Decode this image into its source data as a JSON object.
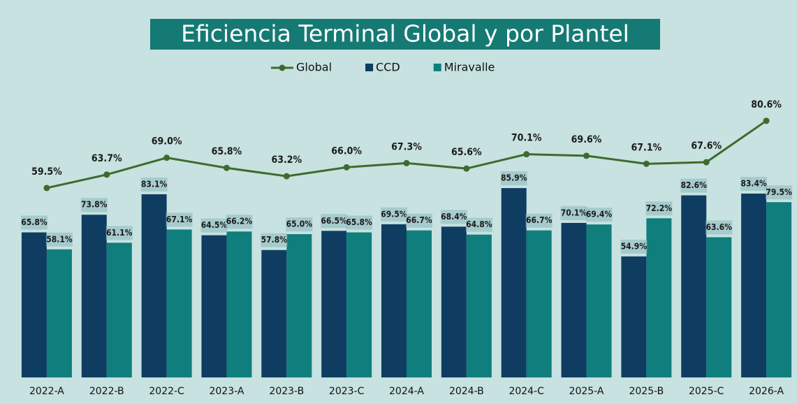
{
  "chart_data": {
    "type": "bar-line",
    "title": "Eficiencia Terminal Global y por Plantel",
    "categories": [
      "2022-A",
      "2022-B",
      "2022-C",
      "2023-A",
      "2023-B",
      "2023-C",
      "2024-A",
      "2024-B",
      "2024-C",
      "2025-A",
      "2025-B",
      "2025-C",
      "2026-A"
    ],
    "ylim": [
      0,
      130
    ],
    "y2lim": [
      0,
      90
    ],
    "series": [
      {
        "name": "Global",
        "type": "line",
        "axis": "y2",
        "color": "#3d6b2e",
        "values": [
          59.5,
          63.7,
          69.0,
          65.8,
          63.2,
          66.0,
          67.3,
          65.6,
          70.1,
          69.6,
          67.1,
          67.6,
          80.6
        ],
        "value_labels": [
          "59.5%",
          "63.7%",
          "69.0%",
          "65.8%",
          "63.2%",
          "66.0%",
          "67.3%",
          "65.6%",
          "70.1%",
          "69.6%",
          "67.1%",
          "67.6%",
          "80.6%"
        ]
      },
      {
        "name": "CCD",
        "type": "bar",
        "color": "#0f3d62",
        "values": [
          65.8,
          73.8,
          83.1,
          64.5,
          57.8,
          66.5,
          69.5,
          68.4,
          85.9,
          70.1,
          54.9,
          82.6,
          83.4
        ],
        "value_labels": [
          "65.8%",
          "73.8%",
          "83.1%",
          "64.5%",
          "57.8%",
          "66.5%",
          "69.5%",
          "68.4%",
          "85.9%",
          "70.1%",
          "54.9%",
          "82.6%",
          "83.4%"
        ]
      },
      {
        "name": "Miravalle",
        "type": "bar",
        "color": "#0f7e7d",
        "values": [
          58.1,
          61.1,
          67.1,
          66.2,
          65.0,
          65.8,
          66.7,
          64.8,
          66.7,
          69.4,
          72.2,
          63.6,
          79.5
        ],
        "value_labels": [
          "58.1%",
          "61.1%",
          "67.1%",
          "66.2%",
          "65.0%",
          "65.8%",
          "66.7%",
          "64.8%",
          "66.7%",
          "69.4%",
          "72.2%",
          "63.6%",
          "79.5%"
        ]
      }
    ]
  }
}
